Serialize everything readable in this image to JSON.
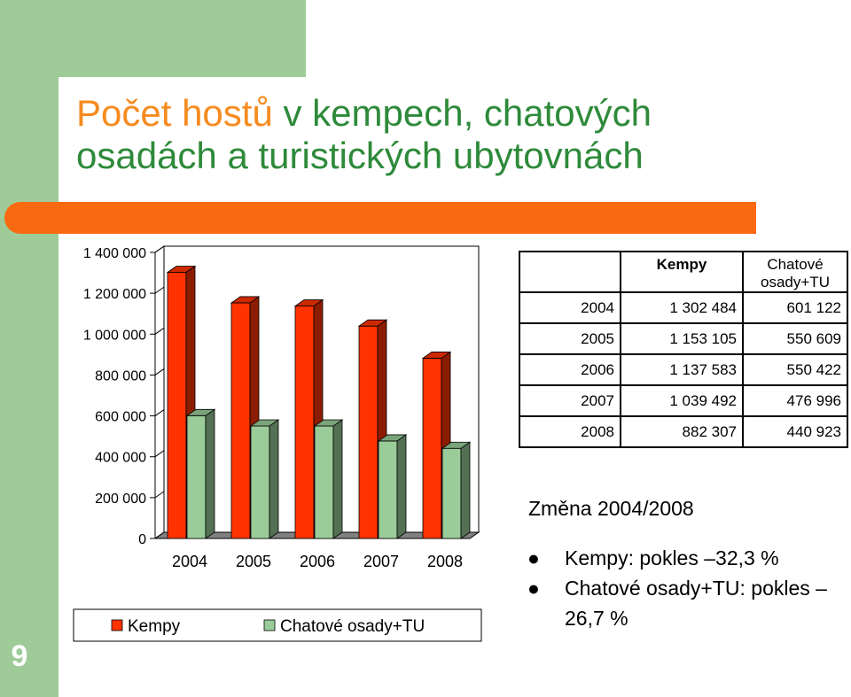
{
  "slide_number": "9",
  "title": {
    "accent_part": "Počet hostů",
    "rest_line1": " v kempech, chatových",
    "line2": "osadách a turistických ubytovnách"
  },
  "colors": {
    "kempy": "#ff3300",
    "chatove": "#99cc99",
    "title_green": "#2e8a3a",
    "title_orange": "#f68b1f",
    "orange_bar": "#f96a10",
    "side_green": "#9ecb98"
  },
  "chart_data": {
    "type": "bar",
    "categories": [
      "2004",
      "2005",
      "2006",
      "2007",
      "2008"
    ],
    "series": [
      {
        "name": "Kempy",
        "values": [
          1302484,
          1153105,
          1137583,
          1039492,
          882307
        ]
      },
      {
        "name": "Chatové osady+TU",
        "values": [
          601122,
          550609,
          550422,
          476996,
          440923
        ]
      }
    ],
    "ylim": [
      0,
      1400000
    ],
    "y_ticks": [
      {
        "value": 0,
        "label": "0"
      },
      {
        "value": 200000,
        "label": "200 000"
      },
      {
        "value": 400000,
        "label": "400 000"
      },
      {
        "value": 600000,
        "label": "600 000"
      },
      {
        "value": 800000,
        "label": "800 000"
      },
      {
        "value": 1000000,
        "label": "1 000 000"
      },
      {
        "value": 1200000,
        "label": "1 200 000"
      },
      {
        "value": 1400000,
        "label": "1 400 000"
      }
    ],
    "legend": [
      "Kempy",
      "Chatové osady+TU"
    ],
    "legend_position": "bottom",
    "three_d": true,
    "grid": false
  },
  "table": {
    "headers": [
      "",
      "Kempy",
      "Chatové osady+TU"
    ],
    "header_chatove_line1": "Chatové",
    "header_chatove_line2": "osady+TU",
    "rows": [
      [
        "2004",
        "1 302 484",
        "601 122"
      ],
      [
        "2005",
        "1 153 105",
        "550 609"
      ],
      [
        "2006",
        "1 137 583",
        "550 422"
      ],
      [
        "2007",
        "1 039 492",
        "476 996"
      ],
      [
        "2008",
        "882 307",
        "440 923"
      ]
    ]
  },
  "change": {
    "title": "Změna 2004/2008",
    "bullet_glyph": "●",
    "items": [
      "Kempy: pokles –32,3 %",
      "Chatové osady+TU: pokles –26,7 %"
    ]
  }
}
